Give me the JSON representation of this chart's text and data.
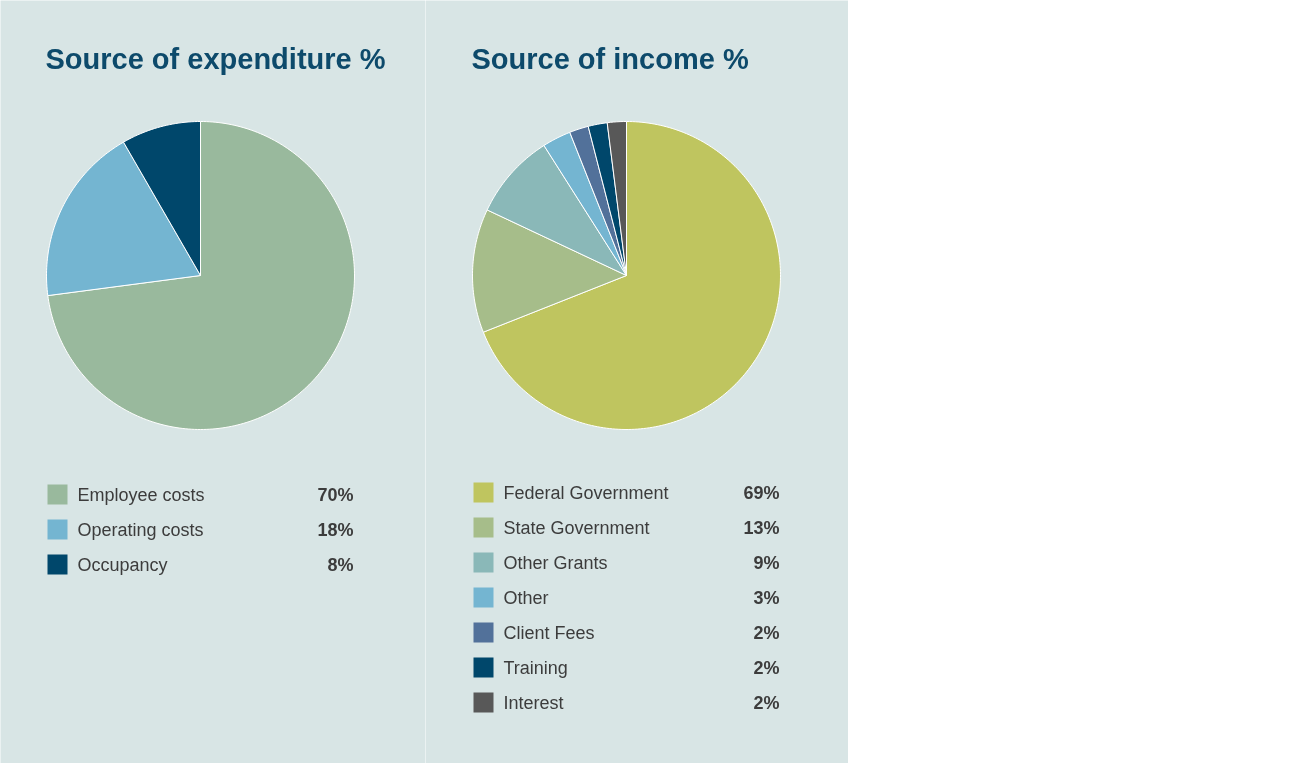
{
  "chart_data": [
    {
      "type": "pie",
      "title": "Source of expenditure %",
      "categories": [
        "Employee costs",
        "Operating costs",
        "Occupancy"
      ],
      "values": [
        70,
        18,
        8
      ],
      "value_labels": [
        "70%",
        "18%",
        "8%"
      ],
      "colors": [
        "#99b99d",
        "#74b5d1",
        "#00476b"
      ],
      "legend": "bottom"
    },
    {
      "type": "pie",
      "title": "Source of income %",
      "categories": [
        "Federal Government",
        "State Government",
        "Other Grants",
        "Other",
        "Client Fees",
        "Training",
        "Interest"
      ],
      "values": [
        69,
        13,
        9,
        3,
        2,
        2,
        2
      ],
      "value_labels": [
        "69%",
        "13%",
        "9%",
        "3%",
        "2%",
        "2%",
        "2%"
      ],
      "colors": [
        "#bfc55f",
        "#a6bd8a",
        "#8ab8b8",
        "#74b5d1",
        "#52719a",
        "#00476b",
        "#585858"
      ],
      "legend": "bottom"
    }
  ]
}
